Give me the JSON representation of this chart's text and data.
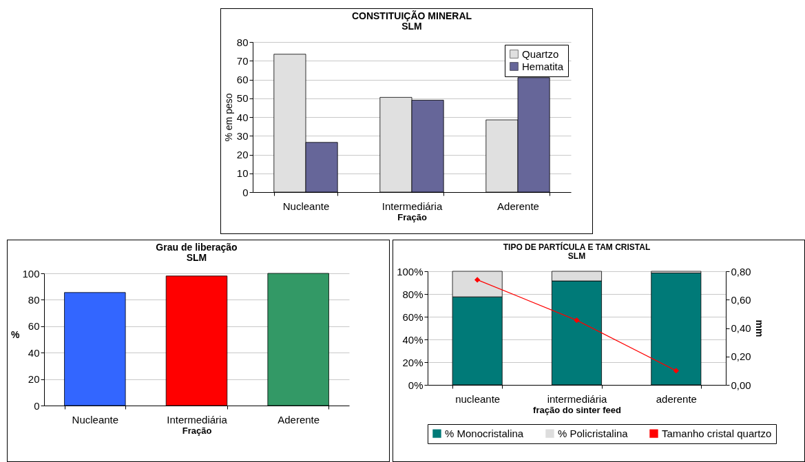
{
  "chart_data": [
    {
      "type": "bar",
      "title": "CONSTITUIÇÃO MINERAL",
      "subtitle": "SLM",
      "xlabel": "Fração",
      "ylabel": "% em peso",
      "categories": [
        "Nucleante",
        "Intermediária",
        "Aderente"
      ],
      "series": [
        {
          "name": "Quartzo",
          "color": "#e0e0e0",
          "values": [
            73.5,
            50.5,
            38.5
          ]
        },
        {
          "name": "Hematita",
          "color": "#666699",
          "values": [
            26.5,
            49,
            61
          ]
        }
      ],
      "ylim": [
        0,
        80
      ],
      "yticks": [
        0,
        10,
        20,
        30,
        40,
        50,
        60,
        70,
        80
      ],
      "grid": "y",
      "legend": "top right"
    },
    {
      "type": "bar",
      "title": "Grau de liberação",
      "subtitle": "SLM",
      "xlabel": "Fração",
      "ylabel": "%",
      "categories": [
        "Nucleante",
        "Intermediária",
        "Aderente"
      ],
      "values": [
        85.5,
        98,
        100
      ],
      "colors": [
        "#3366ff",
        "#ff0000",
        "#339966"
      ],
      "ylim": [
        0,
        100
      ],
      "yticks": [
        0,
        20,
        40,
        60,
        80,
        100
      ],
      "grid": "y"
    },
    {
      "type": "bar",
      "title": "TIPO DE PARTÍCULA  E TAM CRISTAL",
      "subtitle": "SLM",
      "xlabel": "fração do sinter feed",
      "y2label": "mm",
      "categories": [
        "nucleante",
        "intermediária",
        "aderente"
      ],
      "stacked": true,
      "series": [
        {
          "name": "% Monocristalina",
          "color": "#007a78",
          "values": [
            77.5,
            91.5,
            98.5
          ]
        },
        {
          "name": "% Policristalina",
          "color": "#dddddd",
          "values": [
            22.5,
            8.5,
            1.5
          ]
        },
        {
          "name": "Tamanho cristal quartzo",
          "type": "line",
          "axis": "y2",
          "color": "#ff0000",
          "marker": "diamond",
          "values": [
            0.74,
            0.455,
            0.1
          ]
        }
      ],
      "ylim": [
        0,
        100
      ],
      "yticks": [
        {
          "value": 0,
          "label": "0%"
        },
        {
          "value": 20,
          "label": "20%"
        },
        {
          "value": 40,
          "label": "40%"
        },
        {
          "value": 60,
          "label": "60%"
        },
        {
          "value": 80,
          "label": "80%"
        },
        {
          "value": 100,
          "label": "100%"
        }
      ],
      "y2lim": [
        0,
        0.8
      ],
      "y2ticks": [
        {
          "value": 0,
          "label": "0,00"
        },
        {
          "value": 0.2,
          "label": "0,20"
        },
        {
          "value": 0.4,
          "label": "0,40"
        },
        {
          "value": 0.6,
          "label": "0,60"
        },
        {
          "value": 0.8,
          "label": "0,80"
        }
      ],
      "grid": "y",
      "legend": "bottom"
    }
  ]
}
